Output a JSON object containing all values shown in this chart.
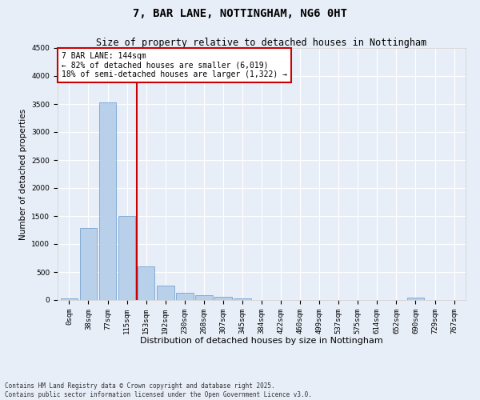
{
  "title": "7, BAR LANE, NOTTINGHAM, NG6 0HT",
  "subtitle": "Size of property relative to detached houses in Nottingham",
  "xlabel": "Distribution of detached houses by size in Nottingham",
  "ylabel": "Number of detached properties",
  "bar_values": [
    30,
    1280,
    3530,
    1500,
    600,
    260,
    125,
    80,
    60,
    30,
    5,
    0,
    0,
    0,
    0,
    0,
    0,
    0,
    40,
    0,
    0
  ],
  "bin_labels": [
    "0sqm",
    "38sqm",
    "77sqm",
    "115sqm",
    "153sqm",
    "192sqm",
    "230sqm",
    "268sqm",
    "307sqm",
    "345sqm",
    "384sqm",
    "422sqm",
    "460sqm",
    "499sqm",
    "537sqm",
    "575sqm",
    "614sqm",
    "652sqm",
    "690sqm",
    "729sqm",
    "767sqm"
  ],
  "bar_color": "#b8d0ea",
  "bar_edge_color": "#6699cc",
  "background_color": "#e8eef8",
  "grid_color": "#ffffff",
  "vline_color": "#cc0000",
  "annotation_text": "7 BAR LANE: 144sqm\n← 82% of detached houses are smaller (6,019)\n18% of semi-detached houses are larger (1,322) →",
  "annotation_box_color": "#ffffff",
  "annotation_box_edge": "#cc0000",
  "ylim": [
    0,
    4500
  ],
  "yticks": [
    0,
    500,
    1000,
    1500,
    2000,
    2500,
    3000,
    3500,
    4000,
    4500
  ],
  "footnote": "Contains HM Land Registry data © Crown copyright and database right 2025.\nContains public sector information licensed under the Open Government Licence v3.0.",
  "title_fontsize": 10,
  "subtitle_fontsize": 8.5,
  "xlabel_fontsize": 8,
  "ylabel_fontsize": 7.5,
  "tick_fontsize": 6.5,
  "annotation_fontsize": 7,
  "footnote_fontsize": 5.5
}
